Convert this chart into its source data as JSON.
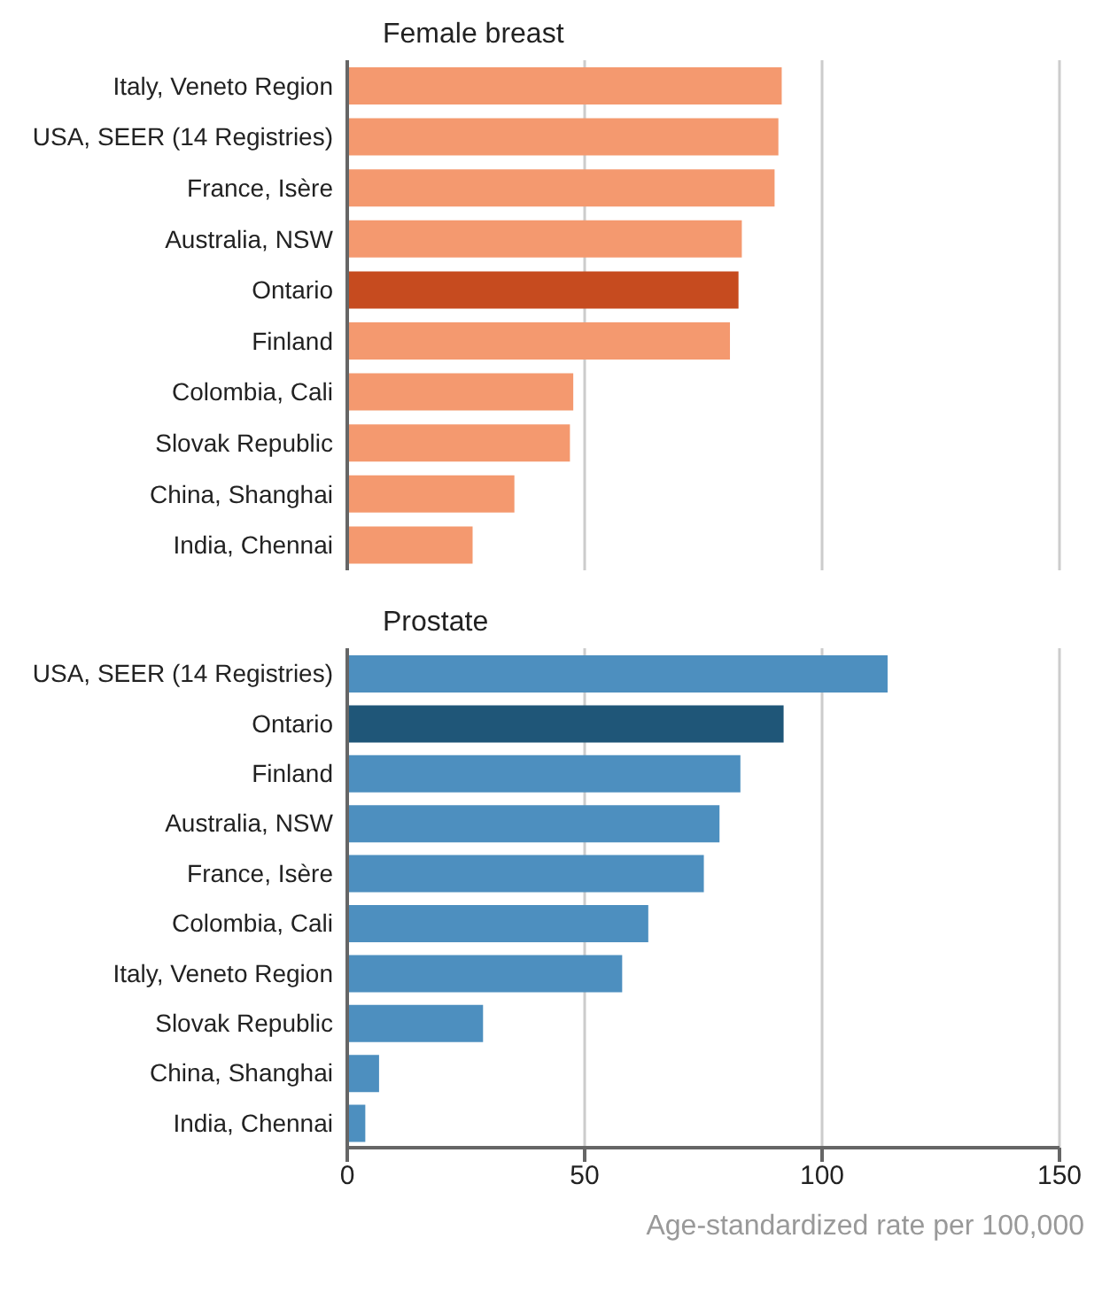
{
  "chart_data": [
    {
      "type": "bar",
      "orientation": "horizontal",
      "title": "Female breast",
      "categories": [
        "Italy, Veneto Region",
        "USA, SEER (14  Registries)",
        "France, Isère",
        "Australia, NSW",
        "Ontario",
        "Finland",
        "Colombia, Cali",
        "Slovak Republic",
        "China, Shanghai",
        "India, Chennai"
      ],
      "values": [
        91.5,
        90.8,
        90.0,
        83.1,
        82.4,
        80.6,
        47.6,
        46.9,
        35.2,
        26.4
      ],
      "colors": [
        "#f4996f",
        "#f4996f",
        "#f4996f",
        "#f4996f",
        "#c64b1f",
        "#f4996f",
        "#f4996f",
        "#f4996f",
        "#f4996f",
        "#f4996f"
      ],
      "xlim": [
        0,
        150
      ],
      "xticks": [
        0,
        50,
        100,
        150
      ],
      "grid": "x",
      "tick_labels": "y"
    },
    {
      "type": "bar",
      "orientation": "horizontal",
      "title": "Prostate",
      "xlabel": "Age-standardized rate per 100,000",
      "categories": [
        "USA, SEER (14  Registries)",
        "Ontario",
        "Finland",
        "Australia, NSW",
        "France, Isère",
        "Colombia, Cali",
        "Italy, Veneto Region",
        "Slovak Republic",
        "China, Shanghai",
        "India, Chennai"
      ],
      "values": [
        113.8,
        91.9,
        82.8,
        78.4,
        75.1,
        63.4,
        57.9,
        28.6,
        6.7,
        3.8
      ],
      "colors": [
        "#4d8fbf",
        "#1f5678",
        "#4d8fbf",
        "#4d8fbf",
        "#4d8fbf",
        "#4d8fbf",
        "#4d8fbf",
        "#4d8fbf",
        "#4d8fbf",
        "#4d8fbf"
      ],
      "xlim": [
        0,
        150
      ],
      "xticks": [
        0,
        50,
        100,
        150
      ],
      "grid": "x"
    }
  ]
}
